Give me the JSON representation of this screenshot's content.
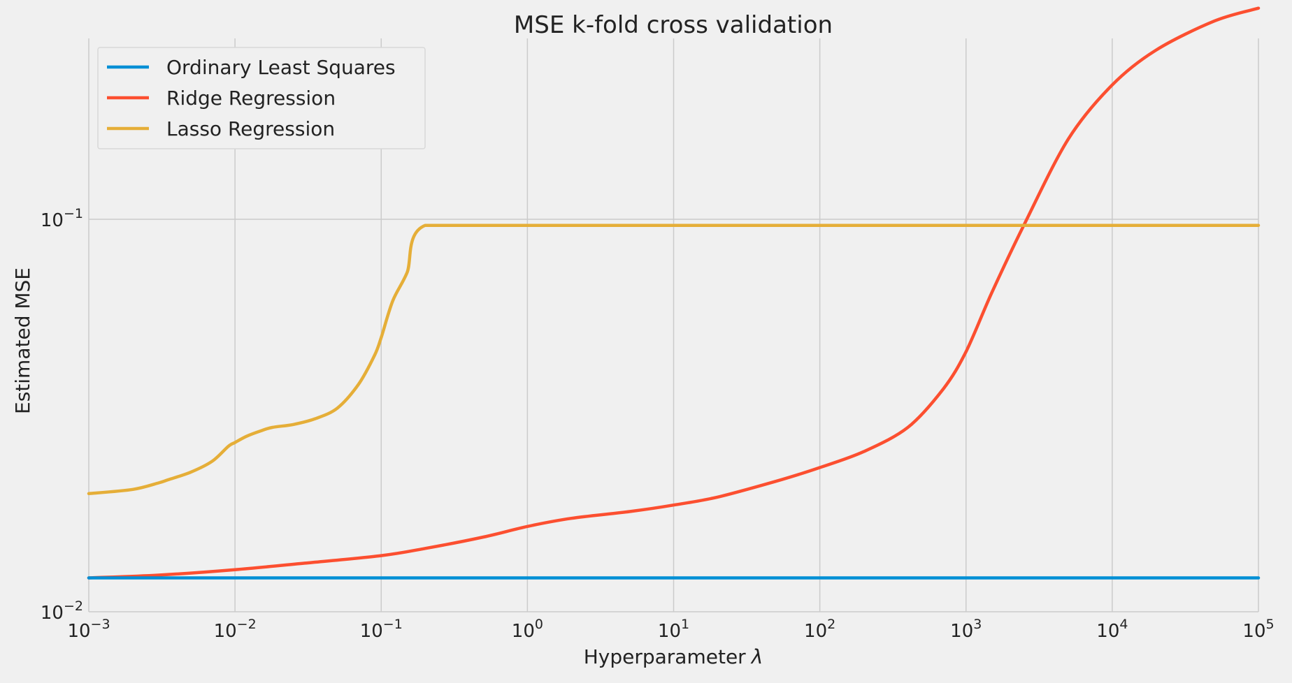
{
  "chart_data": {
    "type": "line",
    "title": "MSE k-fold cross validation",
    "xlabel": "Hyperparameter",
    "xlabel_symbol": "λ",
    "ylabel": "Estimated MSE",
    "xscale": "log",
    "yscale": "log",
    "xlim": [
      0.001,
      100000
    ],
    "ylim": [
      0.01,
      0.45
    ],
    "x_ticks": [
      {
        "value": 0.001,
        "base": "10",
        "exp": "−3"
      },
      {
        "value": 0.01,
        "base": "10",
        "exp": "−2"
      },
      {
        "value": 0.1,
        "base": "10",
        "exp": "−1"
      },
      {
        "value": 1,
        "base": "10",
        "exp": "0"
      },
      {
        "value": 10,
        "base": "10",
        "exp": "1"
      },
      {
        "value": 100,
        "base": "10",
        "exp": "2"
      },
      {
        "value": 1000,
        "base": "10",
        "exp": "3"
      },
      {
        "value": 10000,
        "base": "10",
        "exp": "4"
      },
      {
        "value": 100000,
        "base": "10",
        "exp": "5"
      }
    ],
    "y_ticks": [
      {
        "value": 0.01,
        "base": "10",
        "exp": "−2"
      },
      {
        "value": 0.1,
        "base": "10",
        "exp": "−1"
      }
    ],
    "grid": true,
    "legend_position": "top-left",
    "series": [
      {
        "name": "Ordinary Least Squares",
        "color": "#008fd5",
        "points": [
          [
            0.001,
            0.0122
          ],
          [
            100000,
            0.0122
          ]
        ]
      },
      {
        "name": "Ridge Regression",
        "color": "#fc4f30",
        "points": [
          [
            0.001,
            0.0122
          ],
          [
            0.003,
            0.0124
          ],
          [
            0.01,
            0.0128
          ],
          [
            0.03,
            0.0133
          ],
          [
            0.1,
            0.0139
          ],
          [
            0.2,
            0.0145
          ],
          [
            0.5,
            0.0155
          ],
          [
            1,
            0.0165
          ],
          [
            2,
            0.0173
          ],
          [
            5,
            0.018
          ],
          [
            10,
            0.0187
          ],
          [
            20,
            0.0196
          ],
          [
            50,
            0.0215
          ],
          [
            100,
            0.0233
          ],
          [
            200,
            0.0256
          ],
          [
            400,
            0.0295
          ],
          [
            700,
            0.037
          ],
          [
            1000,
            0.046
          ],
          [
            1500,
            0.065
          ],
          [
            2500,
            0.097
          ],
          [
            5000,
            0.16
          ],
          [
            10000,
            0.22
          ],
          [
            20000,
            0.27
          ],
          [
            50000,
            0.32
          ],
          [
            100000,
            0.345
          ]
        ]
      },
      {
        "name": "Lasso Regression",
        "color": "#e5ae38",
        "points": [
          [
            0.001,
            0.02
          ],
          [
            0.002,
            0.0205
          ],
          [
            0.003,
            0.0213
          ],
          [
            0.0035,
            0.0217
          ],
          [
            0.005,
            0.0227
          ],
          [
            0.007,
            0.0242
          ],
          [
            0.009,
            0.0264
          ],
          [
            0.01,
            0.027
          ],
          [
            0.012,
            0.028
          ],
          [
            0.015,
            0.0289
          ],
          [
            0.018,
            0.0295
          ],
          [
            0.025,
            0.03
          ],
          [
            0.035,
            0.031
          ],
          [
            0.05,
            0.033
          ],
          [
            0.07,
            0.038
          ],
          [
            0.09,
            0.045
          ],
          [
            0.1,
            0.05
          ],
          [
            0.12,
            0.062
          ],
          [
            0.15,
            0.073
          ],
          [
            0.2,
            0.0965
          ],
          [
            1,
            0.0965
          ],
          [
            100000,
            0.0965
          ]
        ]
      }
    ]
  }
}
